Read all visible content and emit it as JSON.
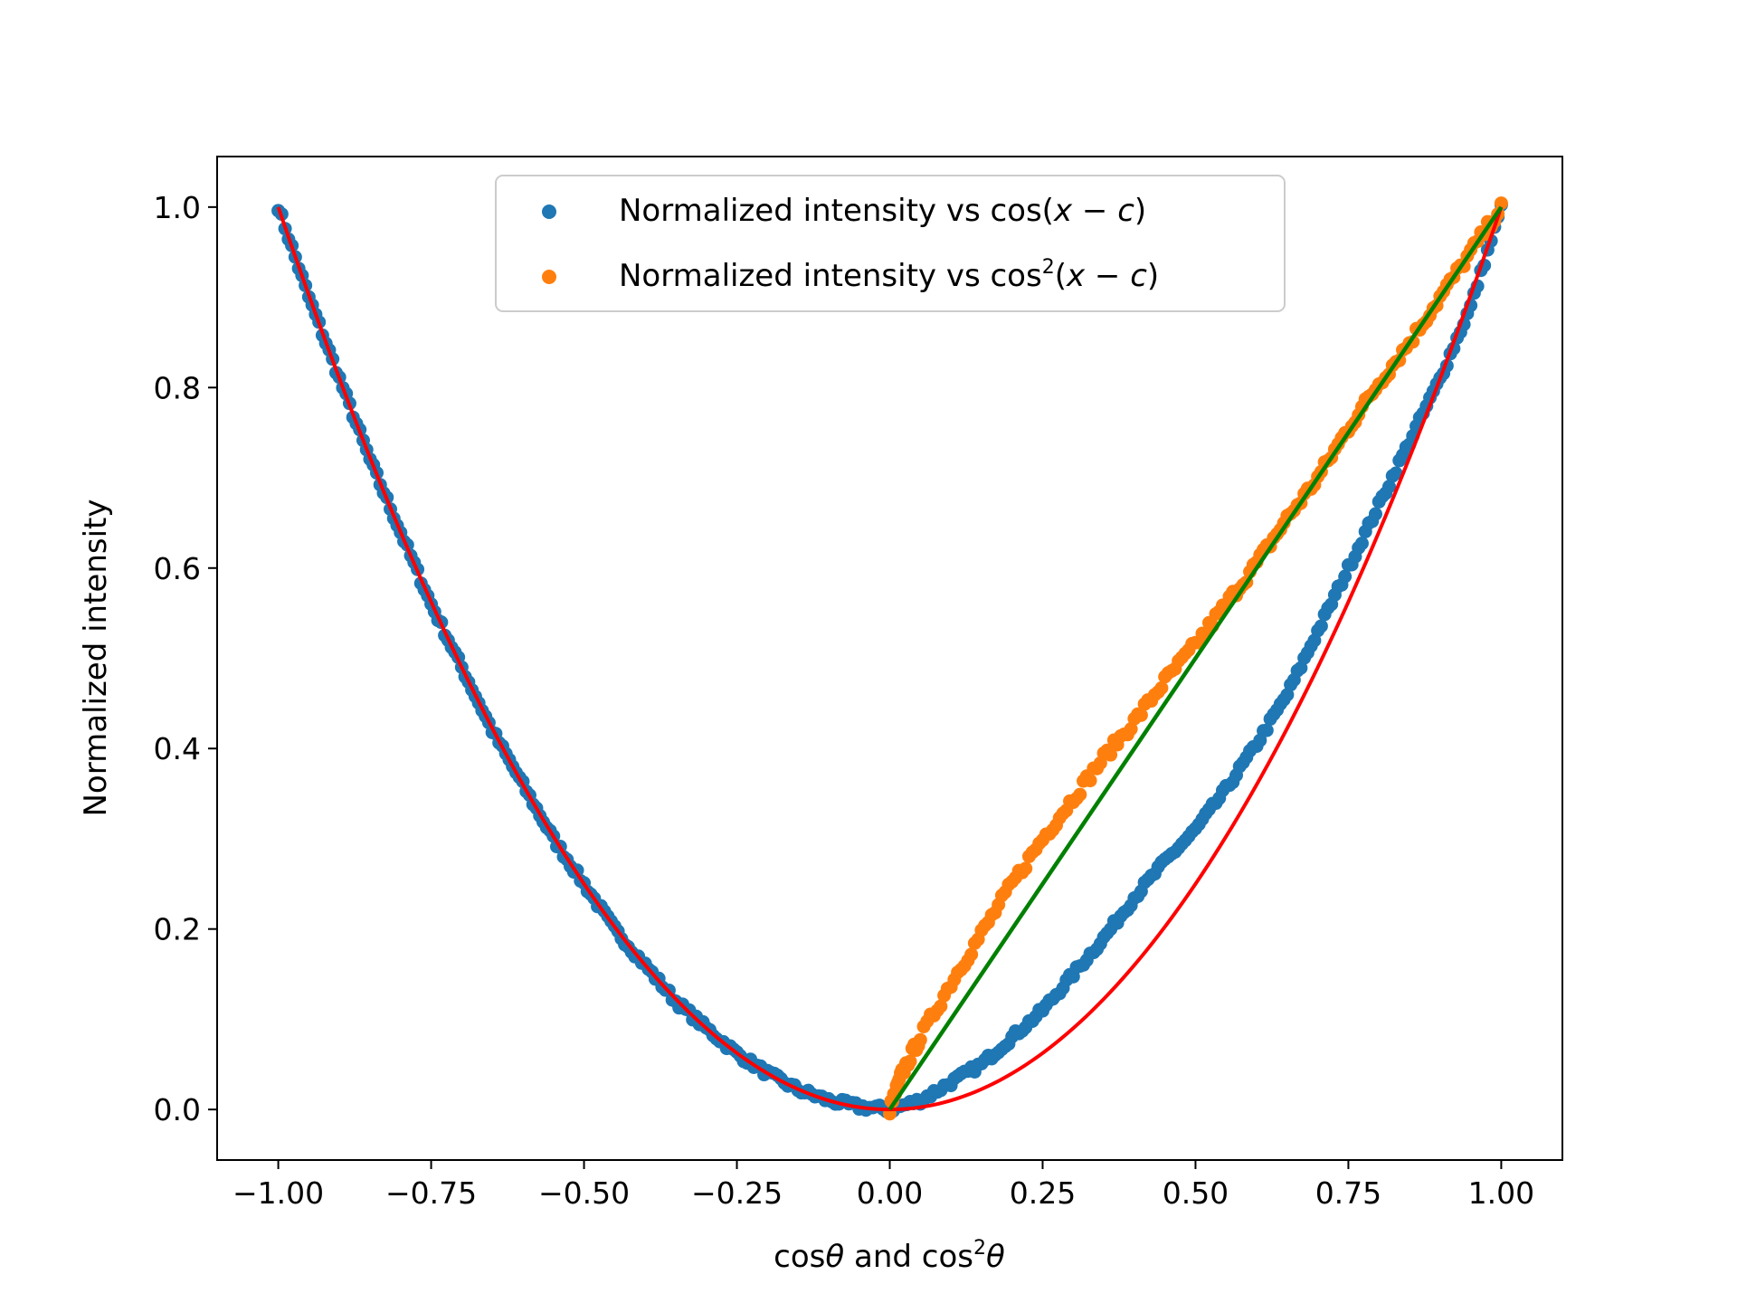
{
  "chart_data": {
    "type": "scatter",
    "xlabel": {
      "pre": "cos",
      "theta1": "θ",
      "mid": " and cos",
      "sup": "2",
      "theta2": "θ"
    },
    "ylabel": "Normalized intensity",
    "xlim": [
      -1.1,
      1.1
    ],
    "ylim": [
      -0.056,
      1.056
    ],
    "x_ticks": [
      -1.0,
      -0.75,
      -0.5,
      -0.25,
      0.0,
      0.25,
      0.5,
      0.75,
      1.0
    ],
    "x_tick_labels": [
      "−1.00",
      "−0.75",
      "−0.50",
      "−0.25",
      "0.00",
      "0.25",
      "0.50",
      "0.75",
      "1.00"
    ],
    "y_ticks": [
      0.0,
      0.2,
      0.4,
      0.6,
      0.8,
      1.0
    ],
    "y_tick_labels": [
      "0.0",
      "0.2",
      "0.4",
      "0.6",
      "0.8",
      "1.0"
    ],
    "grid": false,
    "legend_position": "upper center",
    "series": [
      {
        "name": {
          "pre": "Normalized intensity vs cos(",
          "x": "x",
          "minus": " − ",
          "c": "c",
          "post": ")"
        },
        "kind": "scatter",
        "color": "#1f77b4",
        "x": [
          -1.0,
          -0.95,
          -0.9,
          -0.85,
          -0.8,
          -0.75,
          -0.7,
          -0.65,
          -0.6,
          -0.55,
          -0.5,
          -0.45,
          -0.4,
          -0.35,
          -0.3,
          -0.25,
          -0.2,
          -0.15,
          -0.1,
          -0.05,
          0.0,
          0.05,
          0.1,
          0.15,
          0.2,
          0.25,
          0.3,
          0.35,
          0.4,
          0.45,
          0.5,
          0.55,
          0.6,
          0.65,
          0.7,
          0.75,
          0.8,
          0.85,
          0.9,
          0.95,
          1.0
        ],
        "y": [
          1.0,
          0.9,
          0.81,
          0.72,
          0.64,
          0.56,
          0.49,
          0.42,
          0.36,
          0.3,
          0.25,
          0.2,
          0.16,
          0.12,
          0.09,
          0.062,
          0.04,
          0.022,
          0.01,
          0.003,
          0.0,
          0.01,
          0.03,
          0.05,
          0.08,
          0.11,
          0.15,
          0.19,
          0.235,
          0.275,
          0.31,
          0.355,
          0.405,
          0.46,
          0.53,
          0.6,
          0.67,
          0.74,
          0.81,
          0.89,
          1.0
        ]
      },
      {
        "name": {
          "pre": "Normalized intensity vs cos",
          "sup": "2",
          "open": "(",
          "x": "x",
          "minus": " − ",
          "c": "c",
          "post": ")"
        },
        "kind": "scatter",
        "color": "#ff7f0e",
        "x": [
          0.0,
          0.02,
          0.05,
          0.1,
          0.15,
          0.2,
          0.25,
          0.3,
          0.35,
          0.4,
          0.45,
          0.5,
          0.55,
          0.6,
          0.65,
          0.7,
          0.75,
          0.8,
          0.85,
          0.9,
          0.95,
          1.0
        ],
        "y": [
          0.0,
          0.04,
          0.08,
          0.14,
          0.195,
          0.25,
          0.3,
          0.345,
          0.39,
          0.43,
          0.475,
          0.515,
          0.56,
          0.605,
          0.655,
          0.7,
          0.755,
          0.805,
          0.85,
          0.9,
          0.95,
          1.0
        ]
      },
      {
        "name": "",
        "kind": "line",
        "color": "#ff0000",
        "function": "x^2",
        "x_range": [
          -1.0,
          1.0
        ]
      },
      {
        "name": "",
        "kind": "line",
        "color": "#008000",
        "x": [
          0.0,
          1.0
        ],
        "y": [
          0.0,
          1.0
        ]
      }
    ]
  }
}
